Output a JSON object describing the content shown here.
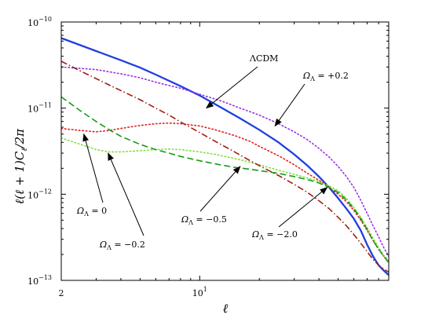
{
  "chart_data": {
    "type": "line",
    "xlabel": "ℓ",
    "ylabel": "ℓ(ℓ + 1)C",
    "ylabel_sub": "ℓ",
    "ylabel_tail": "/2π",
    "x_scale": "log",
    "y_scale": "log",
    "xlim": [
      2,
      90
    ],
    "ylim": [
      1e-13,
      1e-10
    ],
    "grid": false,
    "x_ticks": [
      {
        "value": 2,
        "label": "2",
        "sup": ""
      },
      {
        "value": 10,
        "label": "10",
        "sup": "1"
      }
    ],
    "y_ticks": [
      {
        "value": 1e-13,
        "label": "10",
        "sup": "−13"
      },
      {
        "value": 1e-12,
        "label": "10",
        "sup": "−12"
      },
      {
        "value": 1e-11,
        "label": "10",
        "sup": "−11"
      },
      {
        "value": 1e-10,
        "label": "10",
        "sup": "−10"
      }
    ],
    "series": [
      {
        "name": "ΛCDM",
        "color": "#1f3fe0",
        "style": "solid",
        "x": [
          2,
          3,
          4,
          5,
          6,
          8,
          10,
          13,
          16,
          20,
          25,
          30,
          35,
          40,
          45,
          50,
          55,
          60,
          65,
          70,
          75,
          80,
          85,
          90
        ],
        "y": [
          6.5e-11,
          4.6e-11,
          3.6e-11,
          2.95e-11,
          2.45e-11,
          1.8e-11,
          1.4e-11,
          1e-11,
          7.6e-12,
          5.6e-12,
          4e-12,
          2.9e-12,
          2.15e-12,
          1.6e-12,
          1.2e-12,
          9e-13,
          6.8e-13,
          5.2e-13,
          3.8e-13,
          2.6e-13,
          1.9e-13,
          1.5e-13,
          1.3e-13,
          1.15e-13
        ]
      },
      {
        "name": "Ω_Λ = +0.2",
        "color": "#9b30e8",
        "style": "dotted",
        "x": [
          2,
          3,
          4,
          5,
          6,
          8,
          10,
          13,
          16,
          20,
          25,
          30,
          35,
          40,
          45,
          50,
          55,
          60,
          65,
          70,
          75,
          80,
          85,
          90
        ],
        "y": [
          3e-11,
          2.8e-11,
          2.5e-11,
          2.25e-11,
          2e-11,
          1.7e-11,
          1.45e-11,
          1.2e-11,
          1e-11,
          8.3e-12,
          6.6e-12,
          5.3e-12,
          4.3e-12,
          3.4e-12,
          2.7e-12,
          2.1e-12,
          1.6e-12,
          1.2e-12,
          8.5e-13,
          6e-13,
          4.3e-13,
          3.2e-13,
          2.4e-13,
          1.9e-13
        ]
      },
      {
        "name": "Ω_Λ = 0",
        "color": "#e02020",
        "style": "dotted",
        "x": [
          2,
          2.5,
          3,
          3.5,
          4,
          5,
          6,
          7,
          8,
          10,
          12,
          15,
          18,
          20,
          25,
          30,
          35,
          40,
          45,
          50,
          55,
          60,
          65,
          70,
          75,
          80,
          85,
          90
        ],
        "y": [
          5.8e-12,
          5.5e-12,
          5.3e-12,
          5.5e-12,
          5.8e-12,
          6.3e-12,
          6.6e-12,
          6.7e-12,
          6.6e-12,
          6.2e-12,
          5.6e-12,
          4.8e-12,
          4.1e-12,
          3.6e-12,
          2.8e-12,
          2.2e-12,
          1.75e-12,
          1.45e-12,
          1.2e-12,
          1e-12,
          8.2e-13,
          6.5e-13,
          5e-13,
          3.8e-13,
          2.9e-13,
          2.3e-13,
          1.9e-13,
          1.7e-13
        ]
      },
      {
        "name": "Ω_Λ = −0.2",
        "color": "#7fe03a",
        "style": "dotted",
        "x": [
          2,
          2.5,
          3,
          3.5,
          4,
          5,
          6,
          7,
          8,
          10,
          12,
          15,
          18,
          20,
          25,
          30,
          35,
          40,
          45,
          50,
          55,
          60,
          65,
          70,
          75,
          80,
          85,
          90
        ],
        "y": [
          4.5e-12,
          3.8e-12,
          3.3e-12,
          3.1e-12,
          3.1e-12,
          3.2e-12,
          3.3e-12,
          3.35e-12,
          3.3e-12,
          3.1e-12,
          2.9e-12,
          2.6e-12,
          2.35e-12,
          2.2e-12,
          1.9e-12,
          1.7e-12,
          1.55e-12,
          1.4e-12,
          1.25e-12,
          1.1e-12,
          9e-13,
          7e-13,
          5.4e-13,
          4.1e-13,
          3.1e-13,
          2.4e-13,
          1.95e-13,
          1.7e-13
        ]
      },
      {
        "name": "Ω_Λ = −0.5",
        "color": "#189a18",
        "style": "dashed",
        "x": [
          2,
          2.5,
          3,
          3.5,
          4,
          5,
          6,
          7,
          8,
          10,
          12,
          15,
          18,
          20,
          25,
          30,
          35,
          40,
          45,
          50,
          55,
          60,
          65,
          70,
          75,
          80,
          85,
          90
        ],
        "y": [
          1.35e-11,
          9.3e-12,
          7e-12,
          5.6e-12,
          4.7e-12,
          3.8e-12,
          3.3e-12,
          3e-12,
          2.75e-12,
          2.45e-12,
          2.25e-12,
          2.05e-12,
          1.95e-12,
          1.88e-12,
          1.75e-12,
          1.6e-12,
          1.48e-12,
          1.35e-12,
          1.2e-12,
          1.05e-12,
          8.6e-13,
          6.8e-13,
          5.2e-13,
          3.9e-13,
          2.9e-13,
          2.3e-13,
          1.9e-13,
          1.6e-13
        ]
      },
      {
        "name": "Ω_Λ = −2.0",
        "color": "#a01f12",
        "style": "dashdot",
        "x": [
          2,
          2.5,
          3,
          3.5,
          4,
          5,
          6,
          7,
          8,
          10,
          12,
          15,
          18,
          20,
          25,
          30,
          35,
          40,
          45,
          50,
          55,
          60,
          65,
          70,
          75,
          80,
          85,
          90
        ],
        "y": [
          3.5e-11,
          2.7e-11,
          2.2e-11,
          1.85e-11,
          1.6e-11,
          1.25e-11,
          1e-11,
          8.3e-12,
          6.9e-12,
          5.2e-12,
          4.1e-12,
          3.1e-12,
          2.45e-12,
          2.15e-12,
          1.65e-12,
          1.3e-12,
          1.05e-12,
          8.4e-13,
          6.8e-13,
          5.4e-13,
          4.3e-13,
          3.4e-13,
          2.7e-13,
          2.15e-13,
          1.75e-13,
          1.5e-13,
          1.35e-13,
          1.25e-13
        ]
      }
    ],
    "annotations": [
      {
        "text": "ΛCDM",
        "main": "ΛCDM",
        "sub": "",
        "rest": "",
        "arrow_to": [
          10.8,
          1e-11
        ]
      },
      {
        "text": "Ω_Λ = +0.2",
        "main": "Ω",
        "sub": "Λ",
        "rest": " = +0.2",
        "arrow_to": [
          24,
          6.2e-12
        ]
      },
      {
        "text": "Ω_Λ = 0",
        "main": "Ω",
        "sub": "Λ",
        "rest": " = 0",
        "arrow_to": [
          2.6,
          5e-12
        ]
      },
      {
        "text": "Ω_Λ = −0.2",
        "main": "Ω",
        "sub": "Λ",
        "rest": " = −0.2",
        "arrow_to": [
          3.45,
          3e-12
        ]
      },
      {
        "text": "Ω_Λ = −0.5",
        "main": "Ω",
        "sub": "Λ",
        "rest": " = −0.5",
        "arrow_to": [
          16,
          2.1e-12
        ]
      },
      {
        "text": "Ω_Λ = −2.0",
        "main": "Ω",
        "sub": "Λ",
        "rest": " = −2.0",
        "arrow_to": [
          44,
          1.2e-12
        ]
      }
    ]
  }
}
